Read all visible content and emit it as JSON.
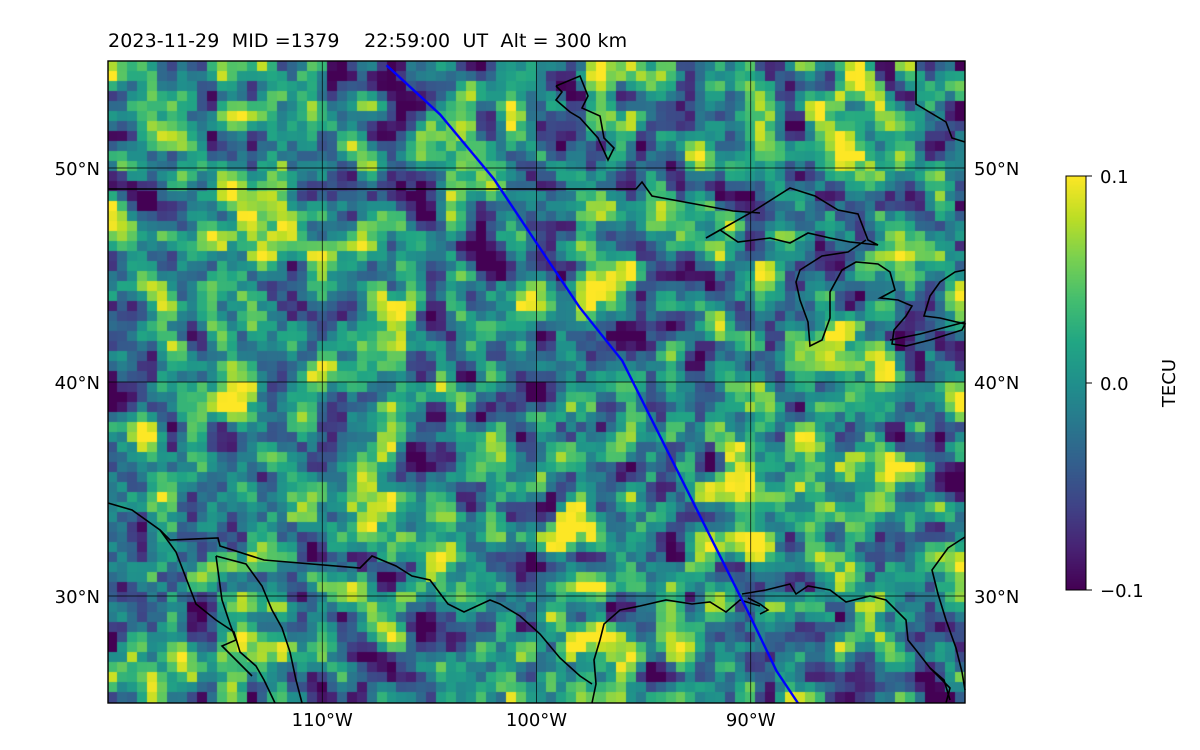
{
  "title": "2023-11-29  MID =1379    22:59:00  UT  Alt = 300 km",
  "map": {
    "lon_range": [
      -120,
      -80
    ],
    "lat_range": [
      25,
      55
    ],
    "lat_labels_left": [
      {
        "lat": 50,
        "label": "50°N"
      },
      {
        "lat": 40,
        "label": "40°N"
      },
      {
        "lat": 30,
        "label": "30°N"
      }
    ],
    "lat_labels_right": [
      {
        "lat": 50,
        "label": "50°N"
      },
      {
        "lat": 40,
        "label": "40°N"
      },
      {
        "lat": 30,
        "label": "30°N"
      }
    ],
    "lon_labels": [
      {
        "lon": -110,
        "label": "110°W"
      },
      {
        "lon": -100,
        "label": "100°W"
      },
      {
        "lon": -90,
        "label": "90°W"
      }
    ],
    "gridlines": true,
    "track_color": "#0000ff",
    "coast_color": "#000000",
    "track": [
      [
        -107.0,
        54.8
      ],
      [
        -104.5,
        52.5
      ],
      [
        -102.0,
        49.5
      ],
      [
        -100.0,
        46.5
      ],
      [
        -98.0,
        43.5
      ],
      [
        -96.0,
        41.0
      ],
      [
        -94.5,
        38.0
      ],
      [
        -93.0,
        35.0
      ],
      [
        -91.5,
        32.0
      ],
      [
        -90.0,
        29.0
      ],
      [
        -88.8,
        26.5
      ],
      [
        -87.8,
        25.0
      ]
    ]
  },
  "colorbar": {
    "label": "TECU",
    "min": -0.1,
    "max": 0.1,
    "ticks": [
      {
        "value": 0.1,
        "label": "0.1"
      },
      {
        "value": 0.0,
        "label": "0.0"
      },
      {
        "value": -0.1,
        "label": "−0.1"
      }
    ],
    "colormap": "viridis"
  }
}
